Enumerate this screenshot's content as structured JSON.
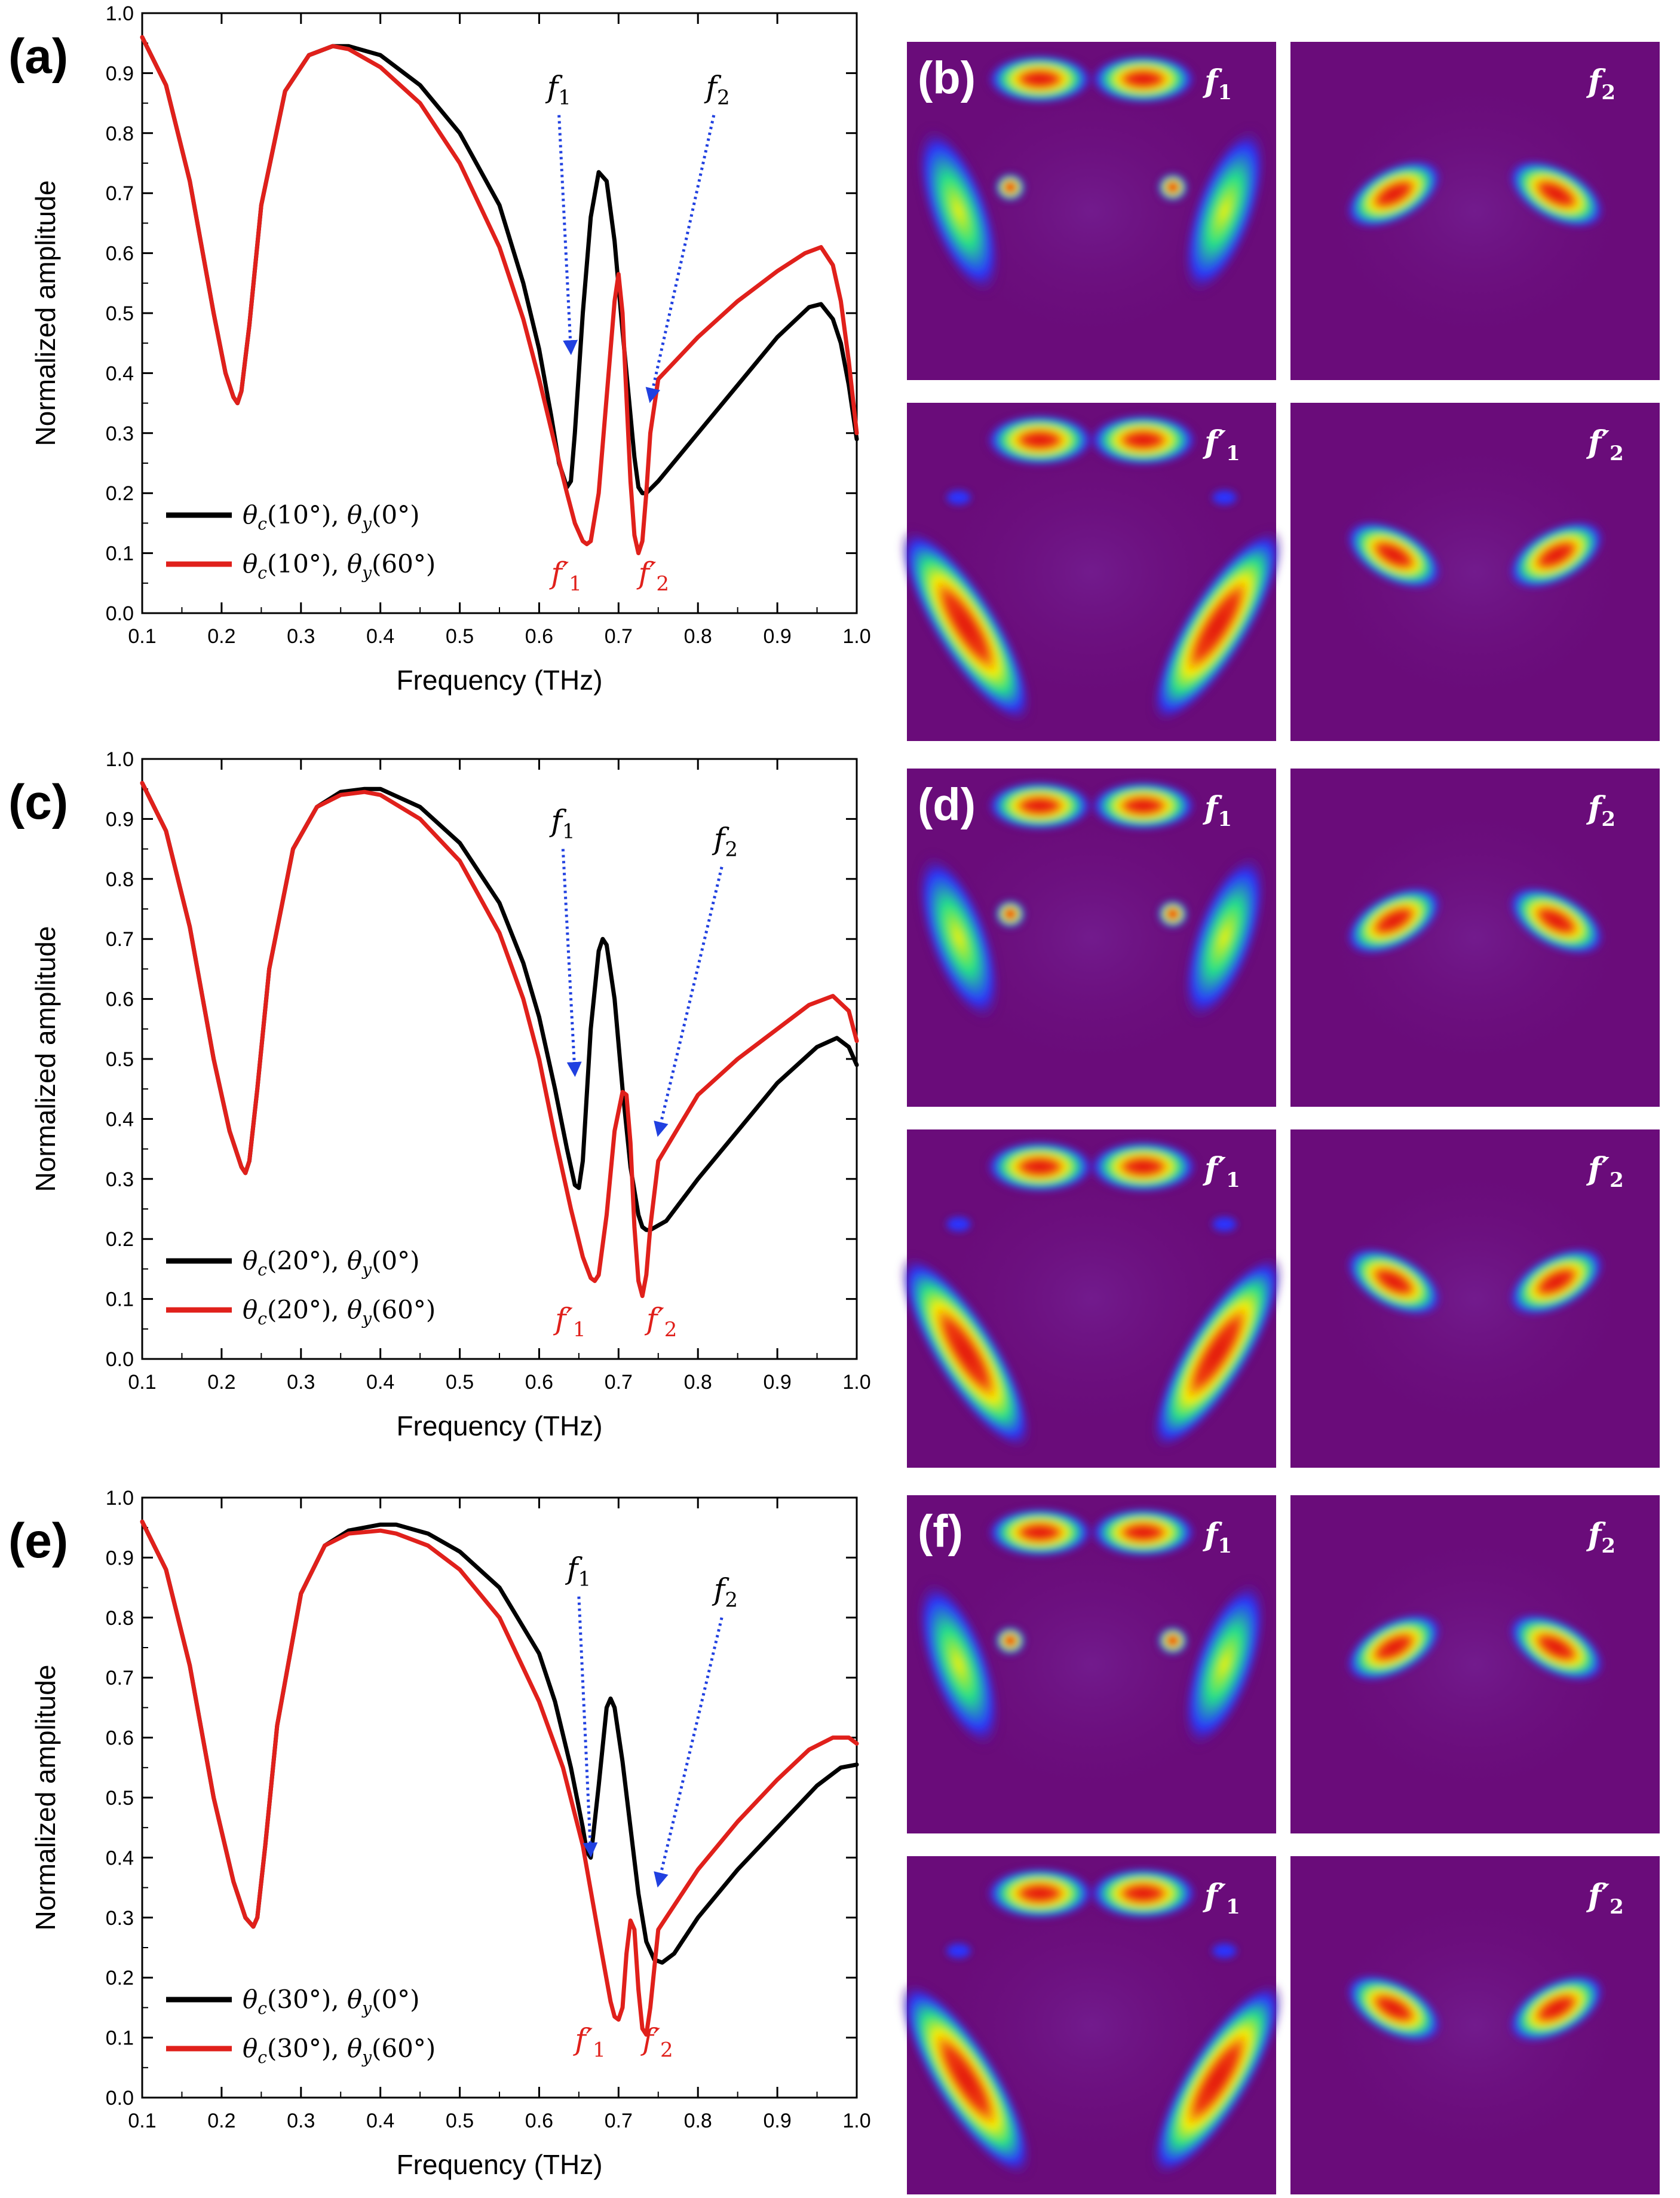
{
  "figure": {
    "colors": {
      "black_series": "#000000",
      "red_series": "#e0201b",
      "annotation_arrow": "#2040e0",
      "field_bg": "#6a0c7a",
      "field_low": "#2a35ff",
      "field_mid": "#23e08a",
      "field_hi": "#f7f000",
      "field_max": "#e01010"
    },
    "field_labels": {
      "f1": "f",
      "f1_sub": "1",
      "f2": "f",
      "f2_sub": "2",
      "prime": "′"
    }
  },
  "chart_data": [
    {
      "id": "a",
      "panel_label": "(a)",
      "field_panel_label": "(b)",
      "type": "line",
      "title": "",
      "xlabel": "Frequency (THz)",
      "ylabel": "Normalized amplitude",
      "xlim": [
        0.1,
        1.0
      ],
      "ylim": [
        0.0,
        1.0
      ],
      "x_ticks": [
        "0.1",
        "0.2",
        "0.3",
        "0.4",
        "0.5",
        "0.6",
        "0.7",
        "0.8",
        "0.9",
        "1.0"
      ],
      "y_ticks": [
        "0.0",
        "0.1",
        "0.2",
        "0.3",
        "0.4",
        "0.5",
        "0.6",
        "0.7",
        "0.8",
        "0.9",
        "1.0"
      ],
      "legend_position": "bottom-left",
      "series": [
        {
          "name": "θc(10°), θy(0°)",
          "legend_theta_c": "10°",
          "legend_theta_y": "0°",
          "color": "#000000",
          "x": [
            0.1,
            0.13,
            0.16,
            0.19,
            0.205,
            0.215,
            0.22,
            0.225,
            0.235,
            0.25,
            0.28,
            0.31,
            0.34,
            0.36,
            0.4,
            0.45,
            0.5,
            0.55,
            0.58,
            0.6,
            0.615,
            0.625,
            0.635,
            0.64,
            0.645,
            0.655,
            0.665,
            0.675,
            0.685,
            0.695,
            0.705,
            0.715,
            0.72,
            0.725,
            0.73,
            0.735,
            0.75,
            0.8,
            0.85,
            0.9,
            0.94,
            0.955,
            0.97,
            0.98,
            0.99,
            1.0
          ],
          "y": [
            0.96,
            0.88,
            0.72,
            0.5,
            0.4,
            0.36,
            0.35,
            0.37,
            0.48,
            0.68,
            0.87,
            0.93,
            0.945,
            0.945,
            0.93,
            0.88,
            0.8,
            0.68,
            0.55,
            0.44,
            0.33,
            0.25,
            0.21,
            0.22,
            0.3,
            0.5,
            0.66,
            0.735,
            0.72,
            0.62,
            0.47,
            0.33,
            0.26,
            0.21,
            0.2,
            0.2,
            0.22,
            0.3,
            0.38,
            0.46,
            0.51,
            0.515,
            0.49,
            0.45,
            0.38,
            0.29
          ]
        },
        {
          "name": "θc(10°), θy(60°)",
          "legend_theta_c": "10°",
          "legend_theta_y": "60°",
          "color": "#e0201b",
          "x": [
            0.1,
            0.13,
            0.16,
            0.19,
            0.205,
            0.215,
            0.22,
            0.225,
            0.235,
            0.25,
            0.28,
            0.31,
            0.34,
            0.36,
            0.4,
            0.45,
            0.5,
            0.55,
            0.58,
            0.6,
            0.62,
            0.635,
            0.645,
            0.655,
            0.66,
            0.665,
            0.675,
            0.685,
            0.695,
            0.7,
            0.705,
            0.71,
            0.715,
            0.72,
            0.725,
            0.73,
            0.735,
            0.74,
            0.75,
            0.8,
            0.85,
            0.9,
            0.935,
            0.955,
            0.97,
            0.98,
            0.99,
            1.0
          ],
          "y": [
            0.96,
            0.88,
            0.72,
            0.5,
            0.4,
            0.36,
            0.35,
            0.37,
            0.48,
            0.68,
            0.87,
            0.93,
            0.945,
            0.94,
            0.91,
            0.85,
            0.75,
            0.61,
            0.49,
            0.39,
            0.28,
            0.2,
            0.15,
            0.12,
            0.115,
            0.12,
            0.2,
            0.36,
            0.52,
            0.565,
            0.5,
            0.36,
            0.22,
            0.13,
            0.1,
            0.12,
            0.2,
            0.3,
            0.39,
            0.46,
            0.52,
            0.57,
            0.6,
            0.61,
            0.58,
            0.52,
            0.42,
            0.3
          ]
        }
      ],
      "annotations": {
        "f1": "f",
        "f1_sub": "1",
        "f2": "f",
        "f2_sub": "2",
        "f1p": "f′",
        "f1p_sub": "1",
        "f2p": "f′",
        "f2p_sub": "2"
      }
    },
    {
      "id": "c",
      "panel_label": "(c)",
      "field_panel_label": "(d)",
      "type": "line",
      "title": "",
      "xlabel": "Frequency (THz)",
      "ylabel": "Normalized amplitude",
      "xlim": [
        0.1,
        1.0
      ],
      "ylim": [
        0.0,
        1.0
      ],
      "x_ticks": [
        "0.1",
        "0.2",
        "0.3",
        "0.4",
        "0.5",
        "0.6",
        "0.7",
        "0.8",
        "0.9",
        "1.0"
      ],
      "y_ticks": [
        "0.0",
        "0.1",
        "0.2",
        "0.3",
        "0.4",
        "0.5",
        "0.6",
        "0.7",
        "0.8",
        "0.9",
        "1.0"
      ],
      "legend_position": "bottom-left",
      "series": [
        {
          "name": "θc(20°), θy(0°)",
          "legend_theta_c": "20°",
          "legend_theta_y": "0°",
          "color": "#000000",
          "x": [
            0.1,
            0.13,
            0.16,
            0.19,
            0.21,
            0.225,
            0.23,
            0.235,
            0.245,
            0.26,
            0.29,
            0.32,
            0.35,
            0.38,
            0.4,
            0.45,
            0.5,
            0.55,
            0.58,
            0.6,
            0.62,
            0.635,
            0.645,
            0.65,
            0.655,
            0.665,
            0.675,
            0.68,
            0.685,
            0.695,
            0.705,
            0.715,
            0.725,
            0.73,
            0.735,
            0.74,
            0.76,
            0.8,
            0.85,
            0.9,
            0.95,
            0.975,
            0.99,
            1.0
          ],
          "y": [
            0.96,
            0.88,
            0.72,
            0.5,
            0.38,
            0.32,
            0.31,
            0.33,
            0.45,
            0.65,
            0.85,
            0.92,
            0.945,
            0.95,
            0.95,
            0.92,
            0.86,
            0.76,
            0.66,
            0.57,
            0.45,
            0.35,
            0.29,
            0.285,
            0.33,
            0.55,
            0.68,
            0.7,
            0.69,
            0.6,
            0.45,
            0.32,
            0.24,
            0.22,
            0.215,
            0.215,
            0.23,
            0.3,
            0.38,
            0.46,
            0.52,
            0.535,
            0.52,
            0.49
          ]
        },
        {
          "name": "θc(20°), θy(60°)",
          "legend_theta_c": "20°",
          "legend_theta_y": "60°",
          "color": "#e0201b",
          "x": [
            0.1,
            0.13,
            0.16,
            0.19,
            0.21,
            0.225,
            0.23,
            0.235,
            0.245,
            0.26,
            0.29,
            0.32,
            0.35,
            0.38,
            0.4,
            0.45,
            0.5,
            0.55,
            0.58,
            0.6,
            0.62,
            0.64,
            0.655,
            0.665,
            0.67,
            0.675,
            0.685,
            0.695,
            0.705,
            0.71,
            0.715,
            0.72,
            0.725,
            0.73,
            0.735,
            0.74,
            0.75,
            0.8,
            0.85,
            0.9,
            0.94,
            0.97,
            0.99,
            1.0
          ],
          "y": [
            0.96,
            0.88,
            0.72,
            0.5,
            0.38,
            0.32,
            0.31,
            0.33,
            0.45,
            0.65,
            0.85,
            0.92,
            0.94,
            0.945,
            0.94,
            0.9,
            0.83,
            0.71,
            0.6,
            0.5,
            0.37,
            0.25,
            0.17,
            0.135,
            0.13,
            0.14,
            0.24,
            0.38,
            0.445,
            0.44,
            0.36,
            0.22,
            0.13,
            0.105,
            0.14,
            0.22,
            0.33,
            0.44,
            0.5,
            0.55,
            0.59,
            0.605,
            0.58,
            0.53
          ]
        }
      ],
      "annotations": {
        "f1": "f",
        "f1_sub": "1",
        "f2": "f",
        "f2_sub": "2",
        "f1p": "f′",
        "f1p_sub": "1",
        "f2p": "f′",
        "f2p_sub": "2"
      }
    },
    {
      "id": "e",
      "panel_label": "(e)",
      "field_panel_label": "(f)",
      "type": "line",
      "title": "",
      "xlabel": "Frequency (THz)",
      "ylabel": "Normalized amplitude",
      "xlim": [
        0.1,
        1.0
      ],
      "ylim": [
        0.0,
        1.0
      ],
      "x_ticks": [
        "0.1",
        "0.2",
        "0.3",
        "0.4",
        "0.5",
        "0.6",
        "0.7",
        "0.8",
        "0.9",
        "1.0"
      ],
      "y_ticks": [
        "0.0",
        "0.1",
        "0.2",
        "0.3",
        "0.4",
        "0.5",
        "0.6",
        "0.7",
        "0.8",
        "0.9",
        "1.0"
      ],
      "legend_position": "bottom-left",
      "series": [
        {
          "name": "θc(30°), θy(0°)",
          "legend_theta_c": "30°",
          "legend_theta_y": "0°",
          "color": "#000000",
          "x": [
            0.1,
            0.13,
            0.16,
            0.19,
            0.215,
            0.23,
            0.24,
            0.245,
            0.255,
            0.27,
            0.3,
            0.33,
            0.36,
            0.4,
            0.42,
            0.46,
            0.5,
            0.55,
            0.6,
            0.62,
            0.64,
            0.655,
            0.66,
            0.665,
            0.675,
            0.685,
            0.69,
            0.695,
            0.705,
            0.715,
            0.725,
            0.735,
            0.745,
            0.755,
            0.77,
            0.8,
            0.85,
            0.9,
            0.95,
            0.98,
            1.0
          ],
          "y": [
            0.96,
            0.88,
            0.72,
            0.5,
            0.36,
            0.3,
            0.285,
            0.3,
            0.42,
            0.62,
            0.84,
            0.92,
            0.945,
            0.955,
            0.955,
            0.94,
            0.91,
            0.85,
            0.74,
            0.66,
            0.55,
            0.45,
            0.41,
            0.4,
            0.52,
            0.65,
            0.665,
            0.65,
            0.56,
            0.45,
            0.34,
            0.26,
            0.23,
            0.225,
            0.24,
            0.3,
            0.38,
            0.45,
            0.52,
            0.55,
            0.555
          ]
        },
        {
          "name": "θc(30°), θy(60°)",
          "legend_theta_c": "30°",
          "legend_theta_y": "60°",
          "color": "#e0201b",
          "x": [
            0.1,
            0.13,
            0.16,
            0.19,
            0.215,
            0.23,
            0.24,
            0.245,
            0.255,
            0.27,
            0.3,
            0.33,
            0.36,
            0.4,
            0.42,
            0.46,
            0.5,
            0.55,
            0.6,
            0.63,
            0.655,
            0.675,
            0.69,
            0.695,
            0.7,
            0.705,
            0.71,
            0.715,
            0.72,
            0.725,
            0.73,
            0.735,
            0.74,
            0.75,
            0.8,
            0.85,
            0.9,
            0.94,
            0.97,
            0.99,
            1.0
          ],
          "y": [
            0.96,
            0.88,
            0.72,
            0.5,
            0.36,
            0.3,
            0.285,
            0.3,
            0.42,
            0.62,
            0.84,
            0.92,
            0.94,
            0.945,
            0.94,
            0.92,
            0.88,
            0.8,
            0.66,
            0.55,
            0.42,
            0.27,
            0.16,
            0.135,
            0.13,
            0.15,
            0.24,
            0.295,
            0.28,
            0.18,
            0.115,
            0.105,
            0.15,
            0.28,
            0.38,
            0.46,
            0.53,
            0.58,
            0.6,
            0.6,
            0.59
          ]
        }
      ],
      "annotations": {
        "f1": "f",
        "f1_sub": "1",
        "f2": "f",
        "f2_sub": "2",
        "f1p": "f′",
        "f1p_sub": "1",
        "f2p": "f′",
        "f2p_sub": "2"
      }
    }
  ]
}
